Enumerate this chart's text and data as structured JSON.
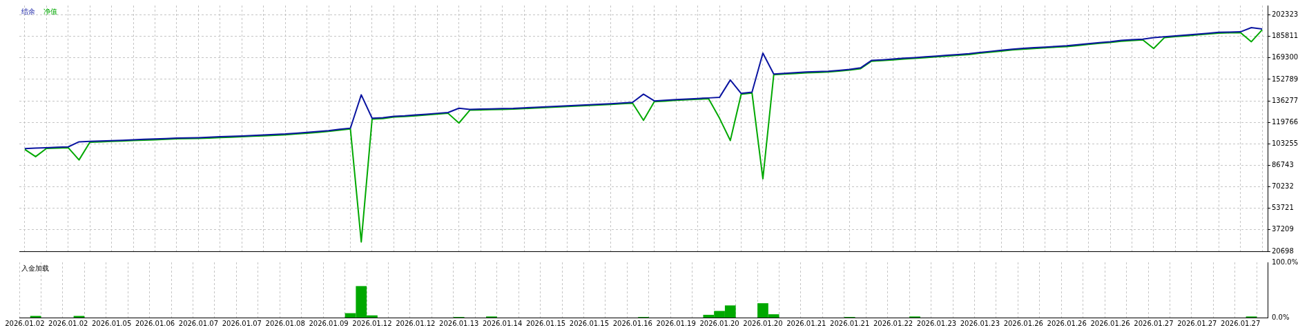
{
  "chart_data": [
    {
      "type": "line",
      "legend": "top left",
      "grid": true,
      "tick_labels": "y",
      "marker": "none",
      "line_style": "solid",
      "categories": [
        "2026.01.02",
        null,
        null,
        null,
        "2026.01.02",
        null,
        null,
        null,
        "2026.01.05",
        null,
        null,
        null,
        "2026.01.06",
        null,
        null,
        null,
        "2026.01.07",
        null,
        null,
        null,
        "2026.01.07",
        null,
        null,
        null,
        "2026.01.08",
        null,
        null,
        null,
        "2026.01.09",
        null,
        null,
        null,
        "2026.01.12",
        null,
        null,
        null,
        "2026.01.12",
        null,
        null,
        null,
        "2026.01.13",
        null,
        null,
        null,
        "2026.01.14",
        null,
        null,
        null,
        "2026.01.15",
        null,
        null,
        null,
        "2026.01.15",
        null,
        null,
        null,
        "2026.01.16",
        null,
        null,
        null,
        "2026.01.19",
        null,
        null,
        null,
        "2026.01.20",
        null,
        null,
        null,
        "2026.01.20",
        null,
        null,
        null,
        "2026.01.21",
        null,
        null,
        null,
        "2026.01.21",
        null,
        null,
        null,
        "2026.01.22",
        null,
        null,
        null,
        "2026.01.23",
        null,
        null,
        null,
        "2026.01.23",
        null,
        null,
        null,
        "2026.01.26",
        null,
        null,
        null,
        "2026.01.26",
        null,
        null,
        null,
        "2026.01.26",
        null,
        null,
        null,
        "2026.01.27",
        null,
        null,
        null,
        "2026.01.27",
        null,
        null,
        null,
        "2026.01.27",
        null,
        null
      ],
      "ylim": [
        20698,
        209500
      ],
      "yticks": [
        202323,
        185811,
        169300,
        152789,
        136277,
        119766,
        103255,
        86743,
        70232,
        53721,
        37209,
        20698
      ],
      "series": [
        {
          "name": "结余",
          "color": "#0a14a0",
          "values": [
            99600,
            100000,
            100300,
            100600,
            100900,
            104800,
            105100,
            105400,
            105700,
            106000,
            106400,
            106700,
            107000,
            107300,
            107700,
            107800,
            108000,
            108300,
            108700,
            109000,
            109300,
            109700,
            110000,
            110400,
            110800,
            111400,
            112000,
            112700,
            113400,
            114400,
            115300,
            140900,
            122900,
            123300,
            124400,
            124800,
            125400,
            126000,
            126700,
            127300,
            130600,
            129700,
            129900,
            130100,
            130300,
            130500,
            130900,
            131300,
            131700,
            132100,
            132500,
            132900,
            133300,
            133700,
            134100,
            134600,
            135100,
            141400,
            136200,
            136700,
            137300,
            137700,
            138100,
            138500,
            138900,
            152300,
            142000,
            142900,
            172900,
            156900,
            157400,
            157900,
            158400,
            158700,
            159000,
            159700,
            160500,
            161600,
            167300,
            167800,
            168400,
            169000,
            169500,
            170100,
            170700,
            171300,
            171900,
            172500,
            173500,
            174300,
            175100,
            176000,
            176600,
            177100,
            177600,
            178100,
            178600,
            179400,
            180200,
            181000,
            181700,
            182700,
            183200,
            183700,
            184800,
            185500,
            186200,
            186800,
            187500,
            188200,
            188900,
            189100,
            189300,
            192500,
            191500
          ]
        },
        {
          "name": "净值",
          "color": "#00a800",
          "values": [
            99000,
            93400,
            99700,
            100000,
            100300,
            90900,
            104500,
            104800,
            105100,
            105400,
            105800,
            106100,
            106400,
            106700,
            107100,
            107300,
            107400,
            107700,
            108100,
            108400,
            108700,
            109100,
            109400,
            109800,
            110200,
            110800,
            111400,
            112100,
            112800,
            113800,
            114700,
            27900,
            122300,
            122700,
            123800,
            124200,
            124800,
            125400,
            126100,
            126700,
            119200,
            129100,
            129300,
            129500,
            129700,
            129900,
            130300,
            130700,
            131100,
            131500,
            131900,
            132300,
            132700,
            133100,
            133500,
            134000,
            134500,
            121300,
            135600,
            136100,
            136700,
            137100,
            137500,
            137900,
            123000,
            105800,
            141400,
            142300,
            76400,
            156300,
            156800,
            157300,
            157800,
            158100,
            158400,
            159100,
            159900,
            161000,
            166700,
            167200,
            167800,
            168400,
            168900,
            169500,
            170100,
            170700,
            171300,
            171900,
            172900,
            173700,
            174500,
            175400,
            176000,
            176500,
            177000,
            177500,
            178000,
            178800,
            179600,
            180400,
            181100,
            182100,
            182600,
            183100,
            176500,
            184900,
            185600,
            186200,
            186900,
            187600,
            188300,
            188500,
            188700,
            181700,
            190900
          ]
        }
      ]
    },
    {
      "type": "bar",
      "title": "入金加载",
      "grid": "x",
      "color": "#00a800",
      "categories": [
        "2026.01.02",
        null,
        null,
        null,
        "2026.01.02",
        null,
        null,
        null,
        "2026.01.05",
        null,
        null,
        null,
        "2026.01.06",
        null,
        null,
        null,
        "2026.01.07",
        null,
        null,
        null,
        "2026.01.07",
        null,
        null,
        null,
        "2026.01.08",
        null,
        null,
        null,
        "2026.01.09",
        null,
        null,
        null,
        "2026.01.12",
        null,
        null,
        null,
        "2026.01.12",
        null,
        null,
        null,
        "2026.01.13",
        null,
        null,
        null,
        "2026.01.14",
        null,
        null,
        null,
        "2026.01.15",
        null,
        null,
        null,
        "2026.01.15",
        null,
        null,
        null,
        "2026.01.16",
        null,
        null,
        null,
        "2026.01.19",
        null,
        null,
        null,
        "2026.01.20",
        null,
        null,
        null,
        "2026.01.20",
        null,
        null,
        null,
        "2026.01.21",
        null,
        null,
        null,
        "2026.01.21",
        null,
        null,
        null,
        "2026.01.22",
        null,
        null,
        null,
        "2026.01.23",
        null,
        null,
        null,
        "2026.01.23",
        null,
        null,
        null,
        "2026.01.26",
        null,
        null,
        null,
        "2026.01.26",
        null,
        null,
        null,
        "2026.01.26",
        null,
        null,
        null,
        "2026.01.27",
        null,
        null,
        null,
        "2026.01.27",
        null,
        null,
        null,
        "2026.01.27",
        null,
        null
      ],
      "ylim": [
        0,
        100
      ],
      "yticks": [
        {
          "value": 100,
          "label": "100.0%"
        },
        {
          "value": 0,
          "label": "0.0%"
        }
      ],
      "values": [
        0,
        3,
        0,
        0,
        0,
        3,
        0,
        0,
        0,
        0,
        0,
        0,
        0,
        0,
        0,
        0,
        0,
        0,
        0,
        0,
        0,
        0,
        0,
        0,
        0,
        0,
        0,
        0,
        0,
        0,
        8,
        57,
        4,
        0,
        0,
        0,
        0,
        0,
        0,
        0,
        1,
        0,
        0,
        2,
        0,
        0,
        0,
        0,
        0,
        0,
        0,
        0,
        0,
        0,
        0,
        0,
        0,
        1,
        0,
        0,
        0,
        0,
        0,
        5,
        12,
        22,
        0,
        0,
        26,
        6,
        0,
        0,
        0,
        0,
        0,
        0,
        1,
        0,
        0,
        0,
        0,
        0,
        2,
        0,
        0,
        0,
        0,
        0,
        0,
        0,
        0,
        0,
        0,
        0,
        0,
        0,
        0,
        0,
        0,
        0,
        0,
        0,
        0,
        0,
        0,
        0,
        0,
        0,
        0,
        0,
        0,
        0,
        0,
        2,
        0
      ]
    }
  ]
}
